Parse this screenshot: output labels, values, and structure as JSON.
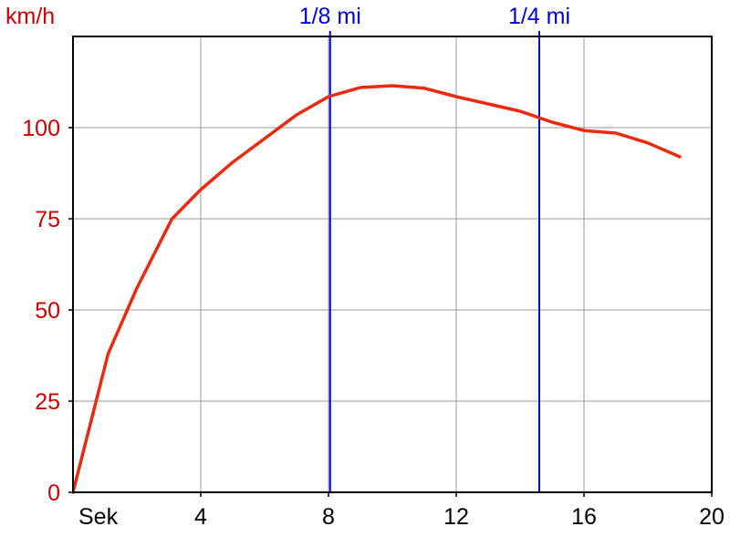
{
  "chart_data": {
    "type": "line",
    "ylabel": "km/h",
    "xlabel": "Sek",
    "xlim": [
      0,
      20
    ],
    "ylim": [
      0,
      125
    ],
    "x_ticks": [
      {
        "value": 4,
        "label": "4"
      },
      {
        "value": 8,
        "label": "8"
      },
      {
        "value": 12,
        "label": "12"
      },
      {
        "value": 16,
        "label": "16"
      },
      {
        "value": 20,
        "label": "20"
      }
    ],
    "y_ticks": [
      {
        "value": 0,
        "label": "0"
      },
      {
        "value": 25,
        "label": "25"
      },
      {
        "value": 50,
        "label": "50"
      },
      {
        "value": 75,
        "label": "75"
      },
      {
        "value": 100,
        "label": "100"
      }
    ],
    "grid": true,
    "markers": [
      {
        "label": "1/8 mi",
        "x": 8.05
      },
      {
        "label": "1/4 mi",
        "x": 14.6
      }
    ],
    "series": [
      {
        "x": [
          0,
          1.1,
          2,
          3.1,
          4,
          5,
          6,
          7,
          8,
          9,
          10,
          11,
          12,
          13,
          14,
          15,
          16,
          17,
          18,
          19
        ],
        "values": [
          0,
          38,
          56,
          75,
          83,
          90.5,
          97,
          103.5,
          108.5,
          111,
          111.5,
          110.8,
          108.5,
          106.5,
          104.5,
          101.5,
          99.2,
          98.5,
          95.8,
          92
        ]
      }
    ],
    "colors": {
      "series": "#e82a10",
      "y_labels": "#cc0000",
      "markers": "#0000dd",
      "grid": "#999999",
      "axis": "#000000"
    }
  }
}
